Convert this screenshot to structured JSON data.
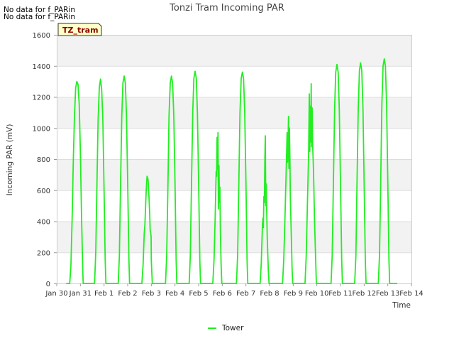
{
  "notices": [
    "No data for f_PARin",
    "No data for f_PARin"
  ],
  "chart_data": {
    "type": "line",
    "title": "Tonzi Tram Incoming PAR",
    "xlabel": "Time",
    "ylabel": "Incoming PAR (mV)",
    "ylim": [
      0,
      1600
    ],
    "xlim": [
      0,
      15
    ],
    "yticks": [
      0,
      200,
      400,
      600,
      800,
      1000,
      1200,
      1400,
      1600
    ],
    "xticks": [
      "Jan 30",
      "Jan 31",
      "Feb 1",
      "Feb 2",
      "Feb 3",
      "Feb 4",
      "Feb 5",
      "Feb 6",
      "Feb 7",
      "Feb 8",
      "Feb 9",
      "Feb 10",
      "Feb 11",
      "Feb 12",
      "Feb 13",
      "Feb 14"
    ],
    "site_tag": "TZ_tram",
    "legend": {
      "placement": "bottom-center"
    },
    "grid": true,
    "series": [
      {
        "name": "Tower",
        "color": "#22ee22",
        "daily_peaks": [
          {
            "day": "Jan 30",
            "peak": 1300
          },
          {
            "day": "Jan 31",
            "peak": 1315
          },
          {
            "day": "Feb 1",
            "peak": 1335
          },
          {
            "day": "Feb 2",
            "peak": 690
          },
          {
            "day": "Feb 3",
            "peak": 1335
          },
          {
            "day": "Feb 4",
            "peak": 1365
          },
          {
            "day": "Feb 5",
            "peak": 970
          },
          {
            "day": "Feb 6",
            "peak": 1360
          },
          {
            "day": "Feb 7",
            "peak": 950
          },
          {
            "day": "Feb 8",
            "peak": 1075
          },
          {
            "day": "Feb 9",
            "peak": 1285
          },
          {
            "day": "Feb 10",
            "peak": 1410
          },
          {
            "day": "Feb 11",
            "peak": 1420
          },
          {
            "day": "Feb 12",
            "peak": 1445
          }
        ],
        "points": [
          [
            0.4,
            0
          ],
          [
            0.55,
            0
          ],
          [
            0.6,
            120
          ],
          [
            0.65,
            420
          ],
          [
            0.7,
            780
          ],
          [
            0.75,
            1080
          ],
          [
            0.8,
            1260
          ],
          [
            0.85,
            1300
          ],
          [
            0.9,
            1280
          ],
          [
            0.95,
            1150
          ],
          [
            1.0,
            850
          ],
          [
            1.05,
            420
          ],
          [
            1.1,
            80
          ],
          [
            1.12,
            0
          ],
          [
            1.6,
            0
          ],
          [
            1.65,
            200
          ],
          [
            1.7,
            650
          ],
          [
            1.75,
            1050
          ],
          [
            1.8,
            1260
          ],
          [
            1.85,
            1315
          ],
          [
            1.9,
            1250
          ],
          [
            1.95,
            1050
          ],
          [
            2.0,
            600
          ],
          [
            2.05,
            150
          ],
          [
            2.08,
            0
          ],
          [
            2.6,
            0
          ],
          [
            2.65,
            180
          ],
          [
            2.7,
            650
          ],
          [
            2.75,
            1080
          ],
          [
            2.8,
            1290
          ],
          [
            2.85,
            1335
          ],
          [
            2.9,
            1290
          ],
          [
            2.95,
            1080
          ],
          [
            3.0,
            650
          ],
          [
            3.05,
            160
          ],
          [
            3.08,
            0
          ],
          [
            3.6,
            0
          ],
          [
            3.65,
            120
          ],
          [
            3.7,
            320
          ],
          [
            3.73,
            380
          ],
          [
            3.78,
            590
          ],
          [
            3.82,
            690
          ],
          [
            3.86,
            670
          ],
          [
            3.9,
            560
          ],
          [
            3.93,
            450
          ],
          [
            3.95,
            340
          ],
          [
            3.97,
            330
          ],
          [
            3.99,
            300
          ],
          [
            4.0,
            150
          ],
          [
            4.04,
            0
          ],
          [
            4.6,
            0
          ],
          [
            4.65,
            180
          ],
          [
            4.7,
            620
          ],
          [
            4.75,
            1080
          ],
          [
            4.8,
            1290
          ],
          [
            4.85,
            1335
          ],
          [
            4.9,
            1290
          ],
          [
            4.95,
            1080
          ],
          [
            5.0,
            650
          ],
          [
            5.05,
            150
          ],
          [
            5.08,
            0
          ],
          [
            5.6,
            0
          ],
          [
            5.65,
            180
          ],
          [
            5.7,
            650
          ],
          [
            5.75,
            1100
          ],
          [
            5.8,
            1320
          ],
          [
            5.85,
            1365
          ],
          [
            5.9,
            1320
          ],
          [
            5.95,
            1100
          ],
          [
            6.0,
            650
          ],
          [
            6.05,
            150
          ],
          [
            6.08,
            0
          ],
          [
            6.6,
            0
          ],
          [
            6.65,
            150
          ],
          [
            6.7,
            420
          ],
          [
            6.74,
            720
          ],
          [
            6.76,
            690
          ],
          [
            6.78,
            940
          ],
          [
            6.8,
            730
          ],
          [
            6.82,
            970
          ],
          [
            6.84,
            480
          ],
          [
            6.86,
            760
          ],
          [
            6.88,
            520
          ],
          [
            6.9,
            620
          ],
          [
            6.92,
            330
          ],
          [
            6.95,
            120
          ],
          [
            6.98,
            0
          ],
          [
            7.6,
            0
          ],
          [
            7.65,
            180
          ],
          [
            7.7,
            650
          ],
          [
            7.75,
            1100
          ],
          [
            7.8,
            1320
          ],
          [
            7.85,
            1360
          ],
          [
            7.9,
            1320
          ],
          [
            7.95,
            1100
          ],
          [
            8.0,
            650
          ],
          [
            8.05,
            150
          ],
          [
            8.08,
            0
          ],
          [
            8.6,
            0
          ],
          [
            8.65,
            130
          ],
          [
            8.7,
            380
          ],
          [
            8.72,
            420
          ],
          [
            8.74,
            360
          ],
          [
            8.76,
            560
          ],
          [
            8.78,
            520
          ],
          [
            8.8,
            780
          ],
          [
            8.82,
            950
          ],
          [
            8.84,
            500
          ],
          [
            8.86,
            640
          ],
          [
            8.9,
            300
          ],
          [
            8.95,
            80
          ],
          [
            8.98,
            0
          ],
          [
            9.55,
            0
          ],
          [
            9.6,
            150
          ],
          [
            9.65,
            420
          ],
          [
            9.7,
            700
          ],
          [
            9.74,
            970
          ],
          [
            9.76,
            780
          ],
          [
            9.78,
            880
          ],
          [
            9.8,
            1075
          ],
          [
            9.82,
            740
          ],
          [
            9.84,
            1000
          ],
          [
            9.86,
            800
          ],
          [
            9.88,
            550
          ],
          [
            9.92,
            300
          ],
          [
            9.95,
            100
          ],
          [
            9.98,
            0
          ],
          [
            10.5,
            0
          ],
          [
            10.55,
            180
          ],
          [
            10.6,
            500
          ],
          [
            10.65,
            820
          ],
          [
            10.68,
            1220
          ],
          [
            10.7,
            850
          ],
          [
            10.72,
            1140
          ],
          [
            10.74,
            910
          ],
          [
            10.76,
            1285
          ],
          [
            10.78,
            880
          ],
          [
            10.8,
            1130
          ],
          [
            10.82,
            900
          ],
          [
            10.86,
            720
          ],
          [
            10.9,
            420
          ],
          [
            10.95,
            150
          ],
          [
            10.98,
            0
          ],
          [
            11.6,
            0
          ],
          [
            11.65,
            180
          ],
          [
            11.7,
            650
          ],
          [
            11.75,
            1120
          ],
          [
            11.8,
            1360
          ],
          [
            11.85,
            1410
          ],
          [
            11.9,
            1360
          ],
          [
            11.95,
            1120
          ],
          [
            12.0,
            650
          ],
          [
            12.05,
            150
          ],
          [
            12.08,
            0
          ],
          [
            12.6,
            0
          ],
          [
            12.65,
            180
          ],
          [
            12.7,
            650
          ],
          [
            12.75,
            1120
          ],
          [
            12.8,
            1370
          ],
          [
            12.85,
            1420
          ],
          [
            12.9,
            1370
          ],
          [
            12.95,
            1120
          ],
          [
            13.0,
            650
          ],
          [
            13.05,
            150
          ],
          [
            13.08,
            0
          ],
          [
            13.6,
            0
          ],
          [
            13.65,
            180
          ],
          [
            13.7,
            650
          ],
          [
            13.75,
            1150
          ],
          [
            13.8,
            1400
          ],
          [
            13.85,
            1445
          ],
          [
            13.9,
            1400
          ],
          [
            13.95,
            1150
          ],
          [
            14.0,
            650
          ],
          [
            14.05,
            150
          ],
          [
            14.08,
            0
          ],
          [
            14.4,
            0
          ]
        ]
      }
    ]
  }
}
